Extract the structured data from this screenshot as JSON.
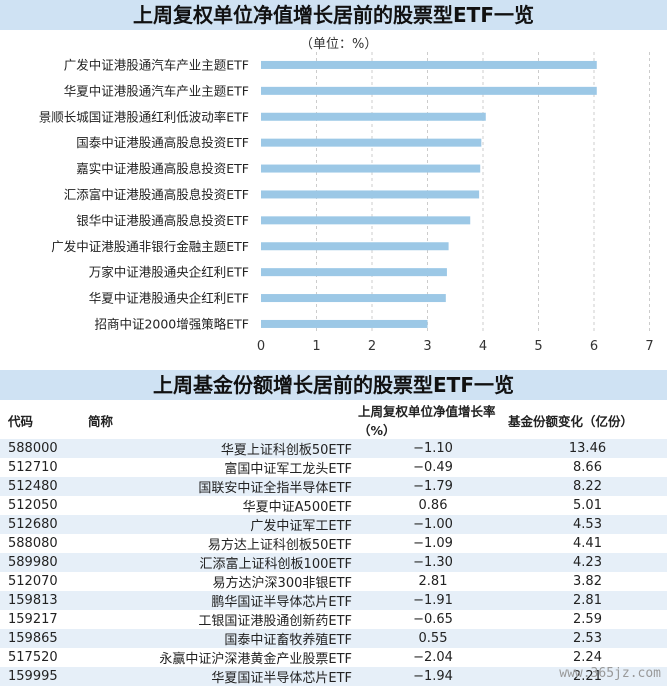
{
  "chart_data": [
    {
      "type": "bar",
      "orientation": "horizontal",
      "title": "上周复权单位净值增长居前的股票型ETF一览",
      "unit": "（单位：%）",
      "categories": [
        "广发中证港股通汽车产业主题ETF",
        "华夏中证港股通汽车产业主题ETF",
        "景顺长城国证港股通红利低波动率ETF",
        "国泰中证港股通高股息投资ETF",
        "嘉实中证港股通高股息投资ETF",
        "汇添富中证港股通高股息投资ETF",
        "银华中证港股通高股息投资ETF",
        "广发中证港股通非银行金融主题ETF",
        "万家中证港股通央企红利ETF",
        "华夏中证港股通央企红利ETF",
        "招商中证2000增强策略ETF"
      ],
      "values": [
        6.05,
        6.05,
        4.05,
        3.97,
        3.95,
        3.93,
        3.77,
        3.38,
        3.35,
        3.33,
        3.0
      ],
      "xlim": [
        0,
        7
      ],
      "ticks": [
        "0",
        "1",
        "2",
        "3",
        "4",
        "5",
        "6",
        "7"
      ],
      "grid": "vertical-dashed",
      "bar_color": "#9cc8e6"
    },
    {
      "type": "table",
      "title": "上周基金份额增长居前的股票型ETF一览",
      "columns": [
        "代码",
        "简称",
        "上周复权单位净值增长率（%）",
        "基金份额变化（亿份）"
      ],
      "rows": [
        [
          "588000",
          "华夏上证科创板50ETF",
          "−1.10",
          "13.46"
        ],
        [
          "512710",
          "富国中证军工龙头ETF",
          "−0.49",
          "8.66"
        ],
        [
          "512480",
          "国联安中证全指半导体ETF",
          "−1.79",
          "8.22"
        ],
        [
          "512050",
          "华夏中证A500ETF",
          "0.86",
          "5.01"
        ],
        [
          "512680",
          "广发中证军工ETF",
          "−1.00",
          "4.53"
        ],
        [
          "588080",
          "易方达上证科创板50ETF",
          "−1.09",
          "4.41"
        ],
        [
          "589980",
          "汇添富上证科创板100ETF",
          "−1.30",
          "4.23"
        ],
        [
          "512070",
          "易方达沪深300非银ETF",
          "2.81",
          "3.82"
        ],
        [
          "159813",
          "鹏华国证半导体芯片ETF",
          "−1.91",
          "2.81"
        ],
        [
          "159217",
          "工银国证港股通创新药ETF",
          "−0.65",
          "2.59"
        ],
        [
          "159865",
          "国泰中证畜牧养殖ETF",
          "0.55",
          "2.53"
        ],
        [
          "517520",
          "永赢中证沪深港黄金产业股票ETF",
          "−2.04",
          "2.24"
        ],
        [
          "159995",
          "华夏国证半导体芯片ETF",
          "−1.94",
          "2.21"
        ]
      ]
    }
  ],
  "watermark": "www.365jz.com"
}
